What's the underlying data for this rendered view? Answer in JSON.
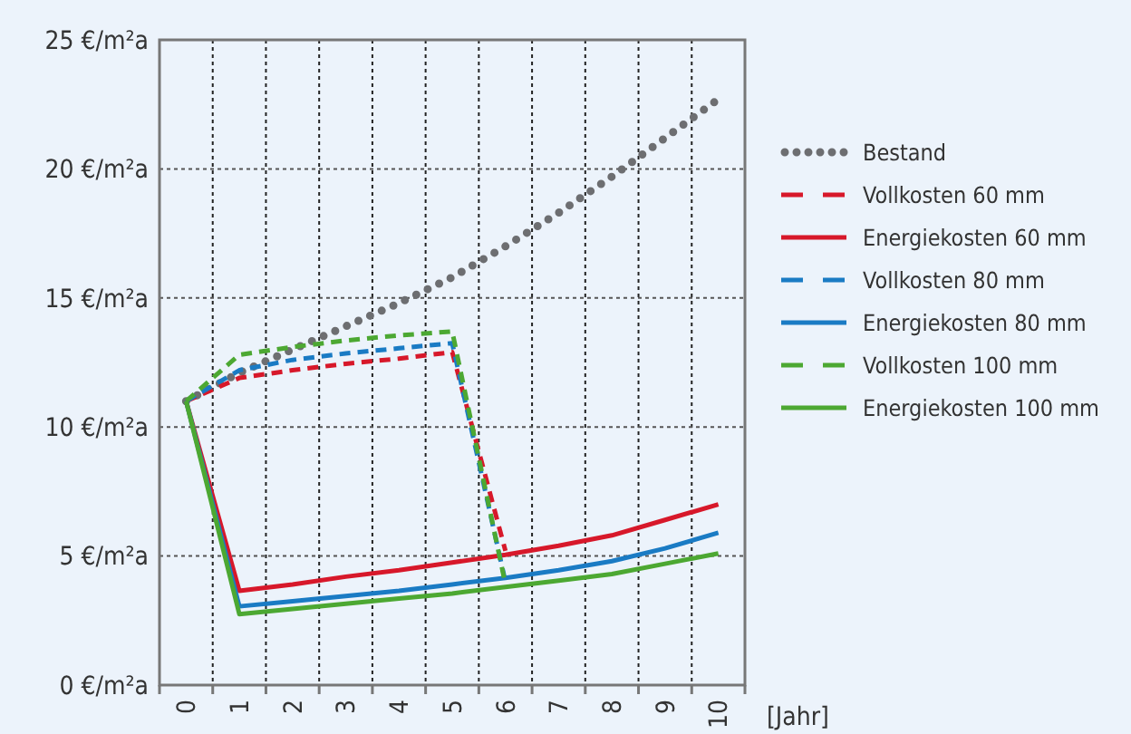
{
  "chart_data": {
    "type": "line",
    "xlabel": "[Jahr]",
    "xlim": [
      -0.5,
      10.5
    ],
    "xticks": [
      0,
      1,
      2,
      3,
      4,
      5,
      6,
      7,
      8,
      9,
      10,
      {
        "value": -0.5,
        "label": null
      },
      {
        "value": 0.5,
        "label": null
      },
      {
        "value": 1.5,
        "label": null
      },
      {
        "value": 2.5,
        "label": null
      },
      {
        "value": 3.5,
        "label": null
      },
      {
        "value": 4.5,
        "label": null
      },
      {
        "value": 5.5,
        "label": null
      },
      {
        "value": 6.5,
        "label": null
      },
      {
        "value": 7.5,
        "label": null
      },
      {
        "value": 8.5,
        "label": null
      },
      {
        "value": 9.5,
        "label": null
      },
      {
        "value": 10.5,
        "label": null
      }
    ],
    "ylim": [
      0,
      25
    ],
    "yticks": [
      {
        "value": 0,
        "label": "0 €/m²a"
      },
      {
        "value": 5,
        "label": "5 €/m²a"
      },
      {
        "value": 10,
        "label": "10 €/m²a"
      },
      {
        "value": 15,
        "label": "15 €/m²a"
      },
      {
        "value": 20,
        "label": "20 €/m²a"
      },
      {
        "value": 25,
        "label": "25 €/m²a"
      }
    ],
    "grid": true,
    "legend": "right",
    "series": [
      {
        "name": "Bestand",
        "color": "#6d6e71",
        "line_style": "dotted",
        "x": [
          0,
          1,
          2,
          3,
          4,
          5,
          6,
          7,
          8,
          9,
          10
        ],
        "values": [
          11,
          12.1,
          13,
          13.9,
          14.8,
          15.8,
          17,
          18.3,
          19.7,
          21.2,
          22.7
        ]
      },
      {
        "name": "Vollkosten 60 mm",
        "color": "#d7182a",
        "line_style": "dashed",
        "x": [
          0,
          1,
          2,
          3,
          4,
          5,
          6
        ],
        "values": [
          11,
          11.9,
          12.2,
          12.45,
          12.65,
          12.9,
          5.2
        ]
      },
      {
        "name": "Energiekosten 60 mm",
        "color": "#d7182a",
        "line_style": "solid",
        "x": [
          0,
          1,
          2,
          3,
          4,
          5,
          6,
          7,
          8,
          9,
          10
        ],
        "values": [
          11,
          3.65,
          3.9,
          4.2,
          4.45,
          4.75,
          5.05,
          5.4,
          5.8,
          6.4,
          7
        ]
      },
      {
        "name": "Vollkosten 80 mm",
        "color": "#1a7bc4",
        "line_style": "dashed",
        "x": [
          0,
          1,
          2,
          3,
          4,
          5,
          6
        ],
        "values": [
          11,
          12.2,
          12.6,
          12.85,
          13.05,
          13.25,
          4
        ]
      },
      {
        "name": "Energiekosten 80 mm",
        "color": "#1a7bc4",
        "line_style": "solid",
        "x": [
          0,
          1,
          2,
          3,
          4,
          5,
          6,
          7,
          8,
          9,
          10
        ],
        "values": [
          11,
          3.05,
          3.25,
          3.45,
          3.65,
          3.9,
          4.15,
          4.45,
          4.8,
          5.3,
          5.9
        ]
      },
      {
        "name": "Vollkosten 100 mm",
        "color": "#4ca832",
        "line_style": "dashed",
        "x": [
          0,
          1,
          2,
          3,
          4,
          5,
          6
        ],
        "values": [
          11,
          12.8,
          13.1,
          13.35,
          13.55,
          13.7,
          3.9
        ]
      },
      {
        "name": "Energiekosten 100 mm",
        "color": "#4ca832",
        "line_style": "solid",
        "x": [
          0,
          1,
          2,
          3,
          4,
          5,
          6,
          7,
          8,
          9,
          10
        ],
        "values": [
          11,
          2.75,
          2.95,
          3.15,
          3.35,
          3.55,
          3.8,
          4.05,
          4.3,
          4.7,
          5.1
        ]
      }
    ]
  }
}
